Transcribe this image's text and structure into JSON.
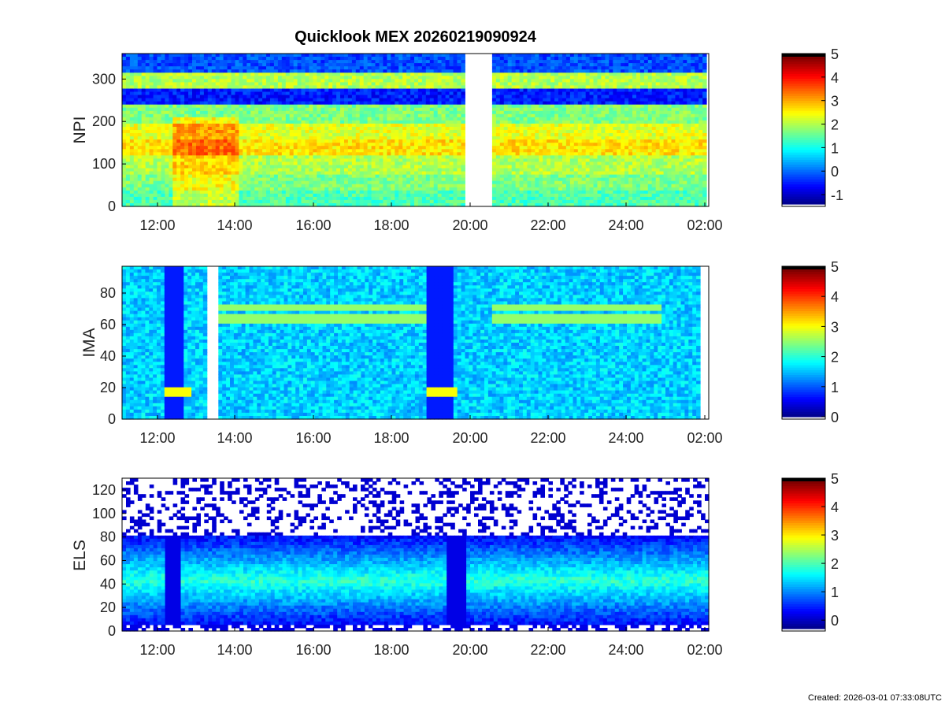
{
  "header": {
    "title": "Quicklook MEX 20260219090924"
  },
  "footer": {
    "created": "Created: 2026-03-01 07:33:08UTC"
  },
  "chart_data": [
    {
      "type": "heatmap",
      "ylabel": "NPI",
      "x_ticks": [
        "12:00",
        "14:00",
        "16:00",
        "18:00",
        "20:00",
        "22:00",
        "24:00",
        "02:00"
      ],
      "y_ticks": [
        "0",
        "100",
        "200",
        "300"
      ],
      "xlim_hours": [
        11.1,
        26.1
      ],
      "ylim": [
        0,
        360
      ],
      "colorbar_ticks": [
        "-1",
        "0",
        "1",
        "2",
        "3",
        "4",
        "5"
      ],
      "colorbar_range": [
        -1.4,
        5
      ],
      "data_gaps_hours": [
        [
          19.95,
          20.55
        ]
      ]
    },
    {
      "type": "heatmap",
      "ylabel": "IMA",
      "x_ticks": [
        "12:00",
        "14:00",
        "16:00",
        "18:00",
        "20:00",
        "22:00",
        "24:00",
        "02:00"
      ],
      "y_ticks": [
        "0",
        "20",
        "40",
        "60",
        "80"
      ],
      "xlim_hours": [
        11.1,
        26.1
      ],
      "ylim": [
        0,
        97
      ],
      "colorbar_ticks": [
        "0",
        "1",
        "2",
        "3",
        "4",
        "5"
      ],
      "colorbar_range": [
        0,
        5
      ],
      "data_gaps_hours": [
        [
          13.35,
          13.5
        ]
      ]
    },
    {
      "type": "heatmap",
      "ylabel": "ELS",
      "x_ticks": [
        "12:00",
        "14:00",
        "16:00",
        "18:00",
        "20:00",
        "22:00",
        "24:00",
        "02:00"
      ],
      "y_ticks": [
        "0",
        "20",
        "40",
        "60",
        "80",
        "100",
        "120"
      ],
      "xlim_hours": [
        11.1,
        26.1
      ],
      "ylim": [
        0,
        130
      ],
      "colorbar_ticks": [
        "0",
        "1",
        "2",
        "3",
        "4",
        "5"
      ],
      "colorbar_range": [
        -0.3,
        5
      ]
    }
  ]
}
